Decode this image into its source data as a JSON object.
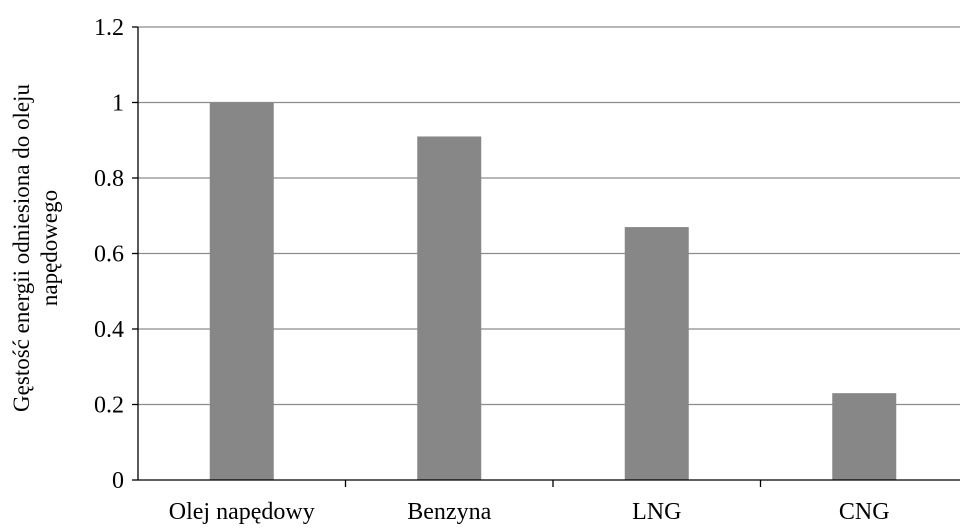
{
  "chart_data": {
    "type": "bar",
    "title": "",
    "xlabel": "",
    "ylabel": [
      "Gęstość  energii  odniesiona  do oleju",
      "napędowego"
    ],
    "categories": [
      "Olej napędowy",
      "Benzyna",
      "LNG",
      "CNG"
    ],
    "values": [
      1.0,
      0.91,
      0.67,
      0.23
    ],
    "ylim": [
      0,
      1.2
    ],
    "yticks": [
      "0",
      "0.2",
      "0.4",
      "0.6",
      "0.8",
      "1",
      "1.2"
    ],
    "grid": true,
    "legend": "none",
    "bar_color": "#878787"
  }
}
